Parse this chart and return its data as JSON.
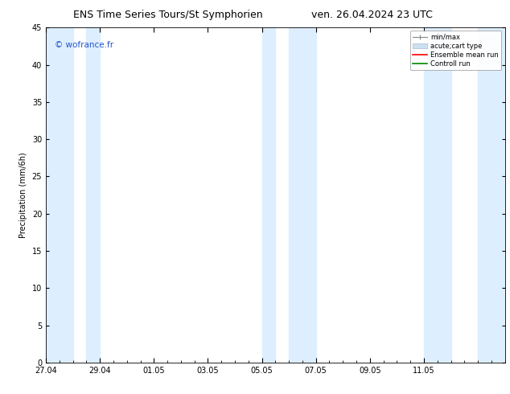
{
  "title_left": "ENS Time Series Tours/St Symphorien",
  "title_right": "ven. 26.04.2024 23 UTC",
  "ylabel": "Precipitation (mm/6h)",
  "watermark": "© wofrance.fr",
  "ylim": [
    0,
    45
  ],
  "yticks": [
    0,
    5,
    10,
    15,
    20,
    25,
    30,
    35,
    40,
    45
  ],
  "xlim_start": 0,
  "xlim_end": 408,
  "xtick_labels": [
    "27.04",
    "29.04",
    "01.05",
    "03.05",
    "05.05",
    "07.05",
    "09.05",
    "11.05"
  ],
  "xtick_hours": [
    0,
    48,
    96,
    144,
    192,
    240,
    288,
    336
  ],
  "shaded_bands": [
    {
      "start": 0,
      "end": 24
    },
    {
      "start": 36,
      "end": 48
    },
    {
      "start": 192,
      "end": 204
    },
    {
      "start": 216,
      "end": 240
    },
    {
      "start": 336,
      "end": 360
    },
    {
      "start": 384,
      "end": 408
    }
  ],
  "band_color": "#ddeeff",
  "background_color": "#ffffff",
  "legend_labels": [
    "min/max",
    "acute;cart type",
    "Ensemble mean run",
    "Controll run"
  ],
  "grid_color": "#dddddd",
  "title_fontsize": 9,
  "axis_fontsize": 7,
  "tick_fontsize": 7
}
